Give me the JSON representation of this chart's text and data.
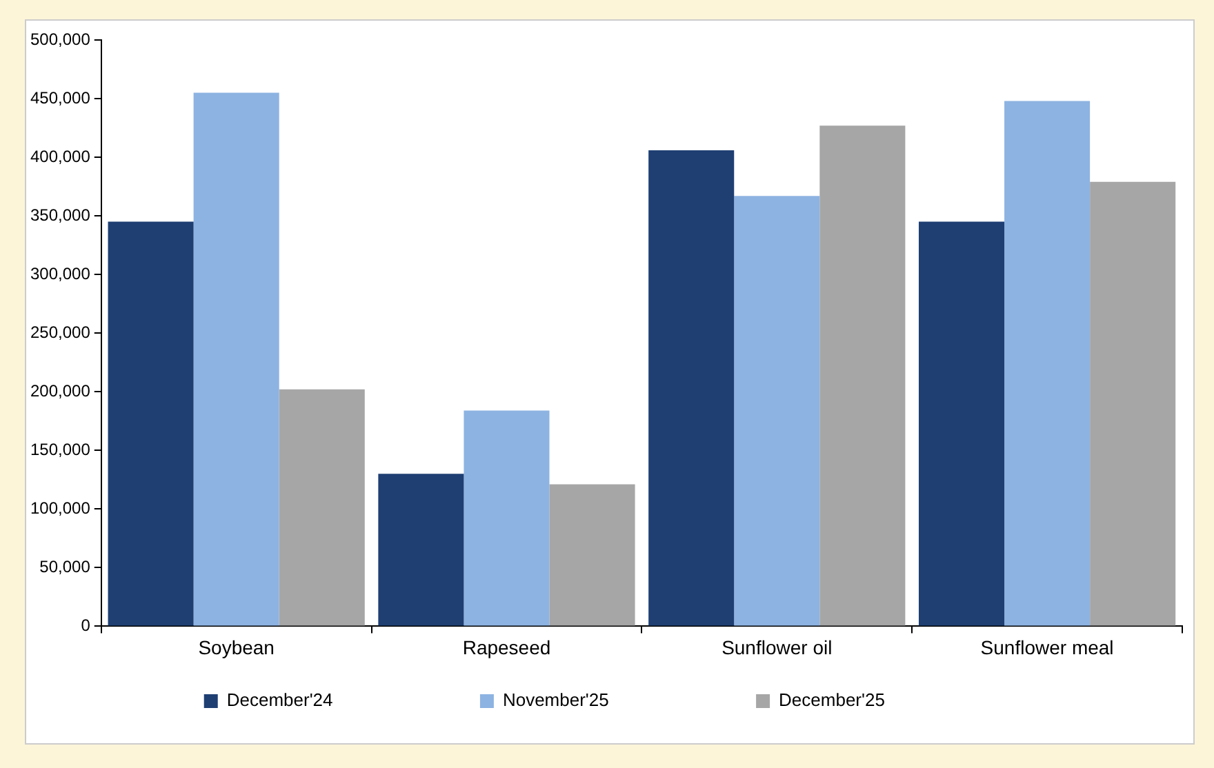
{
  "chart_data": {
    "type": "bar",
    "categories": [
      "Soybean",
      "Rapeseed",
      "Sunflower oil",
      "Sunflower meal"
    ],
    "series": [
      {
        "name": "December'24",
        "color": "#1f3f73",
        "values": [
          345000,
          130000,
          406000,
          345000
        ]
      },
      {
        "name": "November'25",
        "color": "#8db3e2",
        "values": [
          455000,
          184000,
          367000,
          448000
        ]
      },
      {
        "name": "December'25",
        "color": "#a6a6a6",
        "values": [
          202000,
          121000,
          427000,
          379000
        ]
      }
    ],
    "ylim": [
      0,
      500000
    ],
    "yticks": [
      {
        "value": 0,
        "label": "0"
      },
      {
        "value": 50000,
        "label": "50,000"
      },
      {
        "value": 100000,
        "label": "100,000"
      },
      {
        "value": 150000,
        "label": "150,000"
      },
      {
        "value": 200000,
        "label": "200,000"
      },
      {
        "value": 250000,
        "label": "250,000"
      },
      {
        "value": 300000,
        "label": "300,000"
      },
      {
        "value": 350000,
        "label": "350,000"
      },
      {
        "value": 400000,
        "label": "400,000"
      },
      {
        "value": 450000,
        "label": "450,000"
      },
      {
        "value": 500000,
        "label": "500,000"
      }
    ],
    "grid": false,
    "legend": "bottom"
  }
}
